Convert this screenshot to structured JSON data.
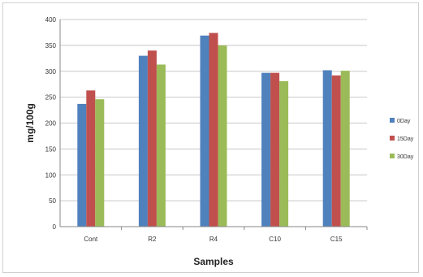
{
  "chart_data": {
    "type": "bar",
    "title": "",
    "xlabel": "Samples",
    "ylabel": "mg/100g",
    "categories": [
      "Cont",
      "R2",
      "R4",
      "C10",
      "C15"
    ],
    "ylim": [
      0,
      400
    ],
    "yticks": [
      0,
      50,
      100,
      150,
      200,
      250,
      300,
      350,
      400
    ],
    "grid": true,
    "legend_position": "right",
    "series": [
      {
        "name": "0Day",
        "color": "#4f81bd",
        "values": [
          237,
          330,
          369,
          297,
          302
        ]
      },
      {
        "name": "15Day",
        "color": "#c0504d",
        "values": [
          263,
          340,
          374,
          297,
          292
        ]
      },
      {
        "name": "30Day",
        "color": "#9bbb59",
        "values": [
          246,
          313,
          350,
          281,
          301
        ]
      }
    ]
  }
}
